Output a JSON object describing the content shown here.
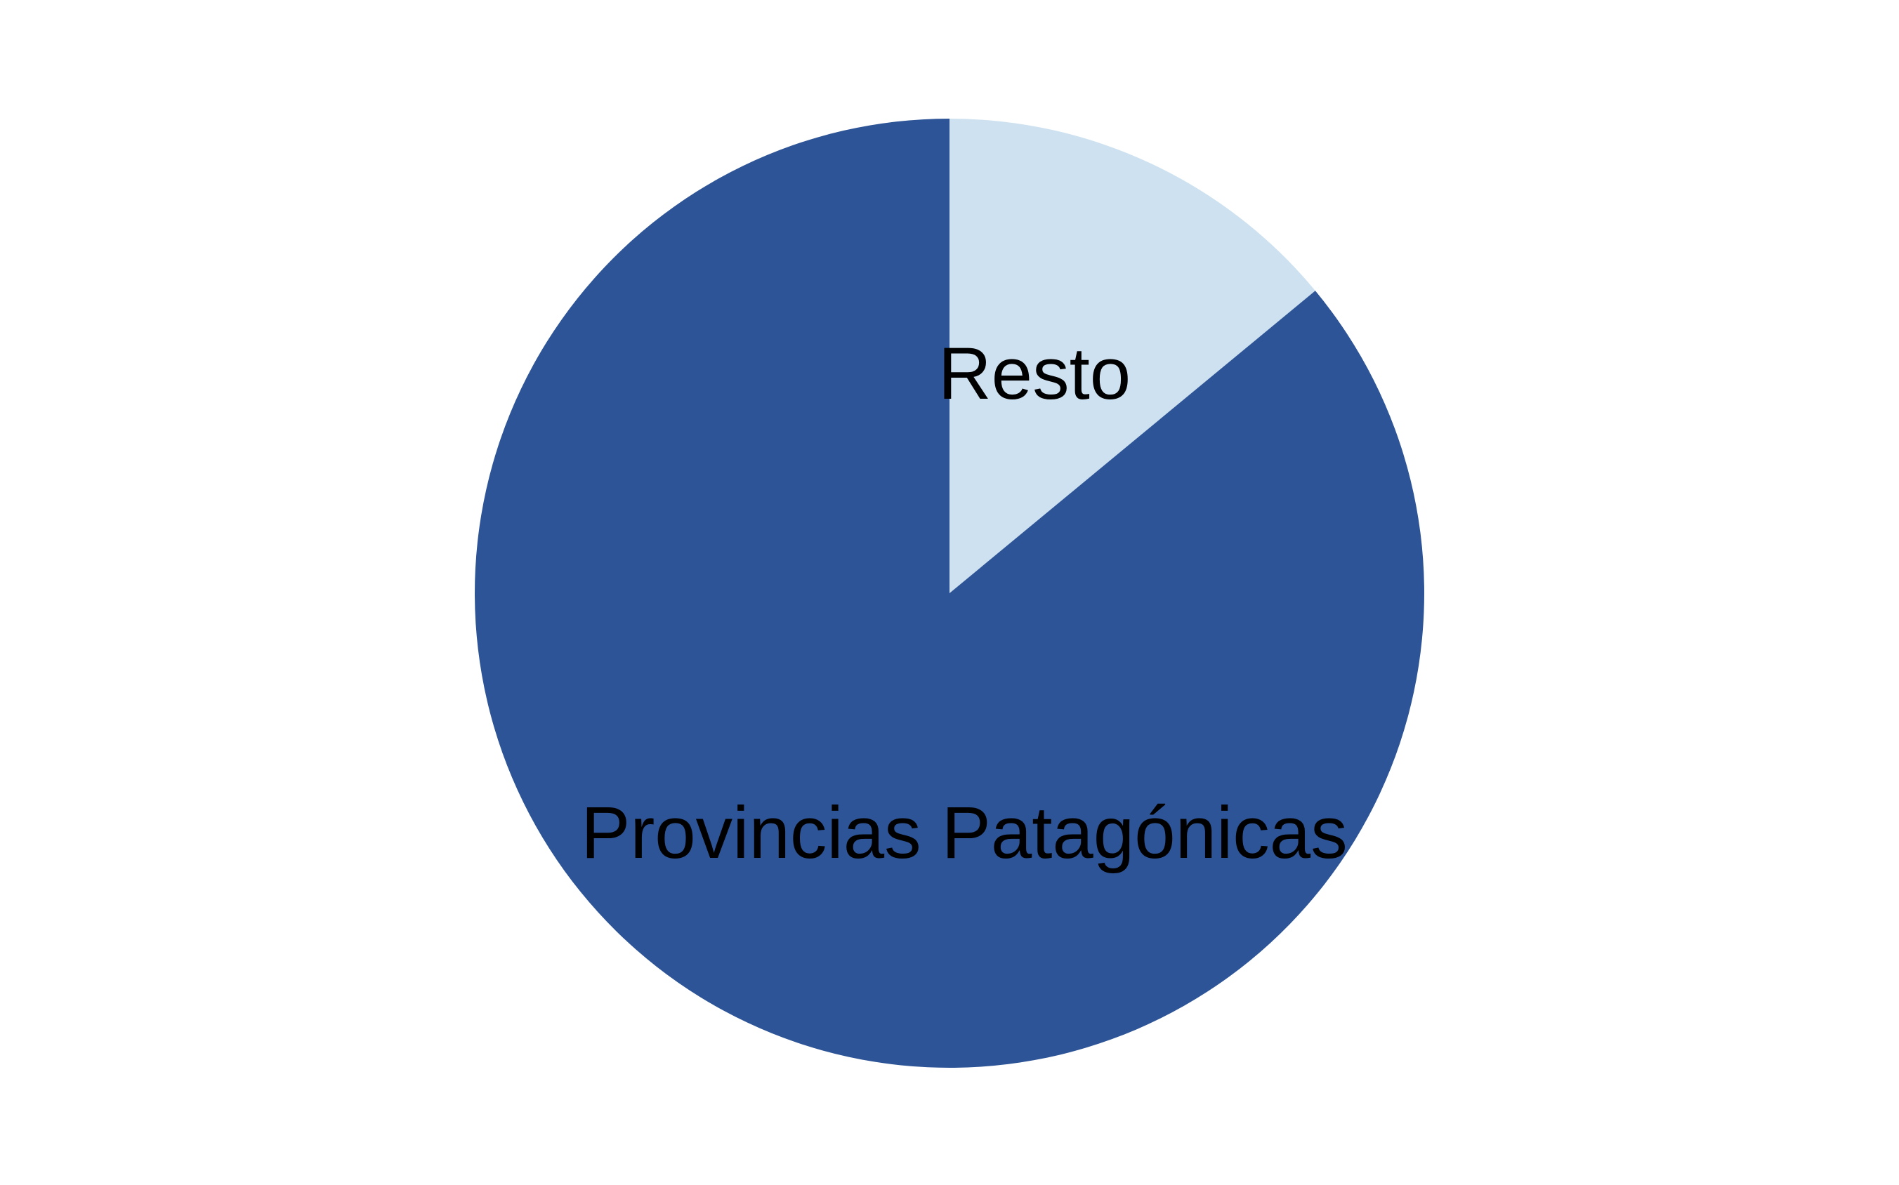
{
  "chart_data": {
    "type": "pie",
    "slices": [
      {
        "label": "Resto",
        "value": 14,
        "color": "#cde1f0"
      },
      {
        "label": "Provincias Patagónicas",
        "value": 86,
        "color": "#2d5496"
      }
    ],
    "start_angle": "12 o'clock",
    "direction": "clockwise",
    "legend": "none",
    "labels": "inside slices"
  }
}
